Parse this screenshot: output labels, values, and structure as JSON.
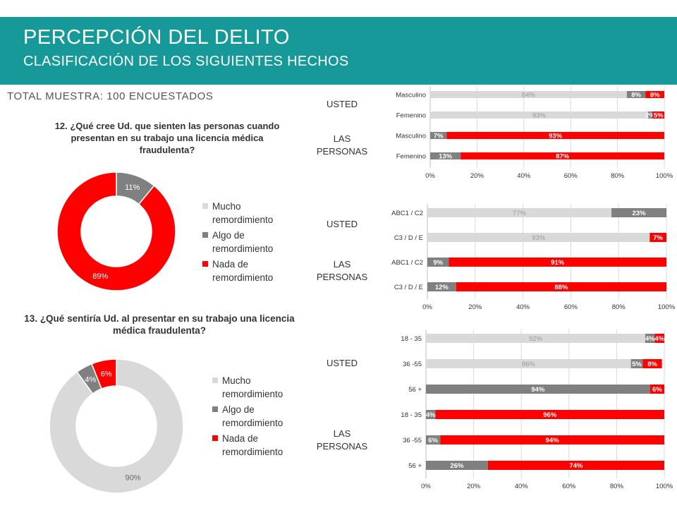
{
  "header": {
    "title": "PERCEPCIÓN DEL DELITO",
    "subtitle": "CLASIFICACIÓN DE LOS SIGUIENTES HECHOS"
  },
  "sample_label": "TOTAL MUESTRA: 100 ENCUESTADOS",
  "q12": {
    "question": "12. ¿Qué cree Ud. que sienten las personas cuando presentan en su trabajo una licencia médica fraudulenta?"
  },
  "q13": {
    "question": "13. ¿Qué sentiría Ud. al presentar en su trabajo una licencia médica fraudulenta?"
  },
  "legend": [
    "Mucho remordimiento",
    "Algo de remordimiento",
    "Nada de remordimiento"
  ],
  "colors": {
    "mucho": "#d9d9d9",
    "algo": "#808080",
    "nada": "#ff0000",
    "header": "#17999a"
  },
  "group_labels": {
    "usted": "USTED",
    "las_personas": "LAS PERSONAS"
  },
  "chart_data": [
    {
      "type": "pie",
      "variant": "donut",
      "categories": [
        "Mucho remordimiento",
        "Algo de remordimiento",
        "Nada de remordimiento"
      ],
      "values": [
        0,
        11,
        89
      ],
      "labels": [
        "",
        "11%",
        "89%"
      ]
    },
    {
      "type": "pie",
      "variant": "donut",
      "categories": [
        "Mucho remordimiento",
        "Algo de remordimiento",
        "Nada de remordimiento"
      ],
      "values": [
        90,
        4,
        6
      ],
      "labels": [
        "90%",
        "4%",
        "6%"
      ]
    },
    {
      "type": "bar",
      "orientation": "horizontal",
      "stacked": "100%",
      "categories": [
        "Masculino",
        "Femenino",
        "Masculino",
        "Femenino"
      ],
      "series": [
        {
          "name": "Mucho remordimiento",
          "values": [
            84,
            93,
            0,
            0
          ]
        },
        {
          "name": "Algo de remordimiento",
          "values": [
            8,
            2,
            7,
            13
          ]
        },
        {
          "name": "Nada de remordimiento",
          "values": [
            8,
            5,
            93,
            87
          ]
        }
      ],
      "xticks": [
        "0%",
        "20%",
        "40%",
        "60%",
        "80%",
        "100%"
      ],
      "xlim": [
        0,
        100
      ]
    },
    {
      "type": "bar",
      "orientation": "horizontal",
      "stacked": "100%",
      "categories": [
        "ABC1 / C2",
        "C3 / D / E",
        "ABC1 / C2",
        "C3 / D / E"
      ],
      "series": [
        {
          "name": "Mucho remordimiento",
          "values": [
            77,
            93,
            0,
            0
          ]
        },
        {
          "name": "Algo de remordimiento",
          "values": [
            23,
            0,
            9,
            12
          ]
        },
        {
          "name": "Nada de remordimiento",
          "values": [
            0,
            7,
            91,
            88
          ]
        }
      ],
      "xticks": [
        "0%",
        "20%",
        "40%",
        "60%",
        "80%",
        "100%"
      ],
      "xlim": [
        0,
        100
      ]
    },
    {
      "type": "bar",
      "orientation": "horizontal",
      "stacked": "100%",
      "categories": [
        "18 - 35",
        "36 -55",
        "56 +",
        "18 - 35",
        "36 -55",
        "56 +"
      ],
      "series": [
        {
          "name": "Mucho remordimiento",
          "values": [
            92,
            86,
            0,
            0,
            0,
            0
          ]
        },
        {
          "name": "Algo de remordimiento",
          "values": [
            4,
            5,
            94,
            4,
            6,
            26
          ]
        },
        {
          "name": "Nada de remordimiento",
          "values": [
            4,
            8,
            6,
            96,
            94,
            74
          ]
        }
      ],
      "xticks": [
        "0%",
        "20%",
        "40%",
        "60%",
        "80%",
        "100%"
      ],
      "xlim": [
        0,
        100
      ]
    }
  ]
}
